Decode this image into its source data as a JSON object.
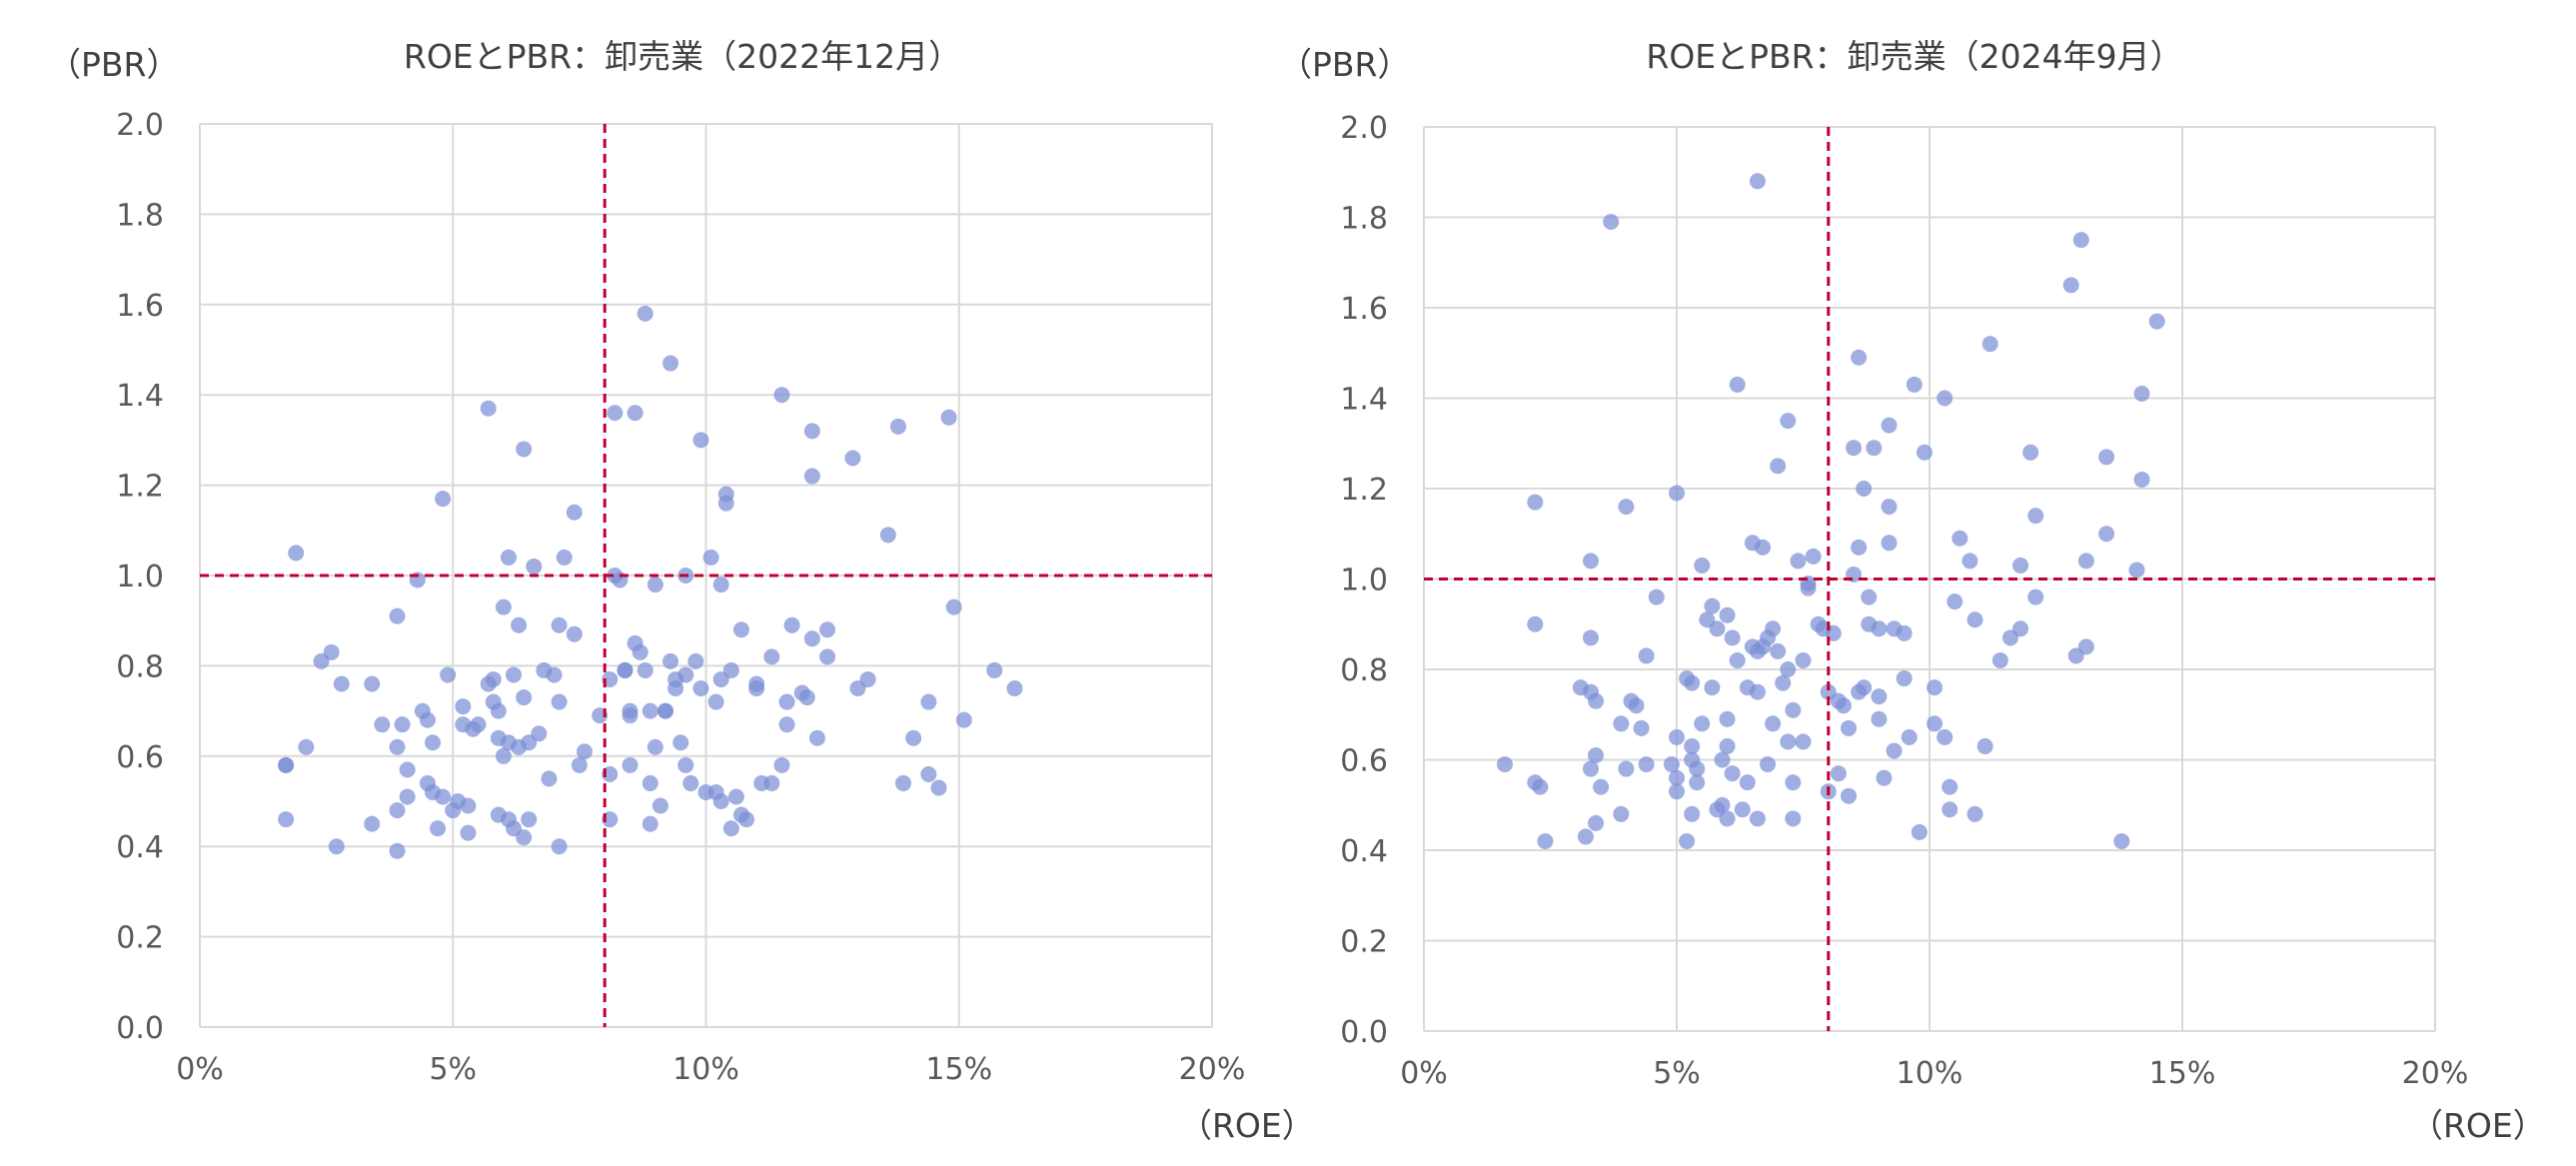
{
  "charts": [
    {
      "title": "ROEとPBR：卸売業（2022年12月）",
      "ylabel": "（PBR）",
      "xlabel": "（ROE）"
    },
    {
      "title": "ROEとPBR：卸売業（2024年9月）",
      "ylabel": "（PBR）",
      "xlabel": "（ROE）"
    }
  ],
  "chart_data": [
    {
      "type": "scatter",
      "title": "ROEとPBR：卸売業（2022年12月）",
      "xlabel": "（ROE）",
      "ylabel": "（PBR）",
      "xlim": [
        0,
        20
      ],
      "ylim": [
        0,
        2.0
      ],
      "x_ticks": [
        "0%",
        "5%",
        "10%",
        "15%",
        "20%"
      ],
      "y_ticks": [
        "0.0",
        "0.2",
        "0.4",
        "0.6",
        "0.8",
        "1.0",
        "1.2",
        "1.4",
        "1.6",
        "1.8",
        "2.0"
      ],
      "grid": true,
      "reference_lines": {
        "x": 8,
        "y": 1.0,
        "color": "#c00030",
        "style": "dashed"
      },
      "marker_color": "#7b8fd6",
      "points": [
        [
          1.9,
          1.05
        ],
        [
          1.7,
          0.58
        ],
        [
          1.7,
          0.46
        ],
        [
          2.1,
          0.62
        ],
        [
          2.4,
          0.81
        ],
        [
          2.6,
          0.83
        ],
        [
          2.8,
          0.76
        ],
        [
          2.7,
          0.4
        ],
        [
          3.4,
          0.76
        ],
        [
          3.4,
          0.45
        ],
        [
          3.6,
          0.67
        ],
        [
          3.9,
          0.91
        ],
        [
          3.9,
          0.62
        ],
        [
          4.0,
          0.67
        ],
        [
          3.9,
          0.48
        ],
        [
          3.9,
          0.39
        ],
        [
          4.1,
          0.57
        ],
        [
          4.1,
          0.51
        ],
        [
          4.3,
          0.99
        ],
        [
          4.4,
          0.7
        ],
        [
          4.5,
          0.68
        ],
        [
          4.5,
          0.54
        ],
        [
          4.6,
          0.52
        ],
        [
          4.6,
          0.63
        ],
        [
          4.7,
          0.44
        ],
        [
          4.8,
          1.17
        ],
        [
          4.8,
          0.51
        ],
        [
          4.9,
          0.78
        ],
        [
          5.0,
          0.48
        ],
        [
          5.1,
          0.5
        ],
        [
          5.2,
          0.71
        ],
        [
          5.2,
          0.67
        ],
        [
          5.3,
          0.49
        ],
        [
          5.3,
          0.43
        ],
        [
          5.4,
          0.66
        ],
        [
          5.5,
          0.67
        ],
        [
          5.7,
          1.37
        ],
        [
          5.7,
          0.76
        ],
        [
          5.8,
          0.77
        ],
        [
          5.8,
          0.72
        ],
        [
          5.9,
          0.7
        ],
        [
          5.9,
          0.64
        ],
        [
          5.9,
          0.47
        ],
        [
          6.0,
          0.93
        ],
        [
          6.0,
          0.6
        ],
        [
          6.1,
          0.63
        ],
        [
          6.1,
          0.46
        ],
        [
          6.1,
          1.04
        ],
        [
          6.2,
          0.78
        ],
        [
          6.2,
          0.44
        ],
        [
          6.3,
          0.89
        ],
        [
          6.3,
          0.62
        ],
        [
          6.4,
          1.28
        ],
        [
          6.4,
          0.73
        ],
        [
          6.4,
          0.42
        ],
        [
          6.5,
          0.63
        ],
        [
          6.5,
          0.46
        ],
        [
          6.6,
          1.02
        ],
        [
          6.7,
          0.65
        ],
        [
          6.8,
          0.79
        ],
        [
          6.9,
          0.55
        ],
        [
          7.0,
          0.78
        ],
        [
          7.1,
          0.89
        ],
        [
          7.1,
          0.72
        ],
        [
          7.1,
          0.4
        ],
        [
          7.2,
          1.04
        ],
        [
          7.4,
          1.14
        ],
        [
          7.4,
          0.87
        ],
        [
          7.5,
          0.58
        ],
        [
          7.6,
          0.61
        ],
        [
          7.9,
          0.69
        ],
        [
          8.1,
          0.77
        ],
        [
          8.1,
          0.56
        ],
        [
          8.1,
          0.46
        ],
        [
          8.2,
          1.36
        ],
        [
          8.2,
          1.0
        ],
        [
          8.3,
          0.99
        ],
        [
          8.4,
          0.79
        ],
        [
          8.5,
          0.7
        ],
        [
          8.5,
          0.69
        ],
        [
          8.5,
          0.58
        ],
        [
          8.6,
          1.36
        ],
        [
          8.6,
          0.85
        ],
        [
          8.7,
          0.83
        ],
        [
          8.8,
          1.58
        ],
        [
          8.8,
          0.79
        ],
        [
          8.9,
          0.7
        ],
        [
          8.9,
          0.54
        ],
        [
          8.9,
          0.45
        ],
        [
          9.0,
          0.98
        ],
        [
          9.0,
          0.62
        ],
        [
          9.1,
          0.49
        ],
        [
          9.2,
          0.7
        ],
        [
          9.3,
          1.47
        ],
        [
          9.3,
          0.81
        ],
        [
          9.4,
          0.77
        ],
        [
          9.4,
          0.75
        ],
        [
          9.5,
          0.63
        ],
        [
          9.6,
          1.0
        ],
        [
          9.6,
          0.78
        ],
        [
          9.6,
          0.58
        ],
        [
          9.7,
          0.54
        ],
        [
          9.8,
          0.81
        ],
        [
          9.9,
          1.3
        ],
        [
          9.9,
          0.75
        ],
        [
          10.0,
          0.52
        ],
        [
          10.1,
          1.04
        ],
        [
          10.2,
          0.72
        ],
        [
          10.2,
          0.52
        ],
        [
          10.3,
          0.98
        ],
        [
          10.3,
          0.77
        ],
        [
          10.3,
          0.5
        ],
        [
          10.4,
          1.18
        ],
        [
          10.4,
          1.16
        ],
        [
          10.5,
          0.79
        ],
        [
          10.5,
          0.44
        ],
        [
          10.6,
          0.51
        ],
        [
          10.7,
          0.88
        ],
        [
          10.7,
          0.47
        ],
        [
          10.8,
          0.46
        ],
        [
          11.0,
          0.76
        ],
        [
          11.0,
          0.75
        ],
        [
          11.1,
          0.54
        ],
        [
          11.3,
          0.82
        ],
        [
          11.3,
          0.54
        ],
        [
          11.5,
          1.4
        ],
        [
          11.5,
          0.58
        ],
        [
          11.6,
          0.72
        ],
        [
          11.6,
          0.67
        ],
        [
          11.7,
          0.89
        ],
        [
          11.9,
          0.74
        ],
        [
          12.0,
          0.73
        ],
        [
          12.1,
          1.32
        ],
        [
          12.1,
          1.22
        ],
        [
          12.1,
          0.86
        ],
        [
          12.2,
          0.64
        ],
        [
          12.4,
          0.88
        ],
        [
          12.4,
          0.82
        ],
        [
          12.9,
          1.26
        ],
        [
          13.0,
          0.75
        ],
        [
          13.2,
          0.77
        ],
        [
          13.6,
          1.09
        ],
        [
          13.8,
          1.33
        ],
        [
          13.9,
          0.54
        ],
        [
          14.1,
          0.64
        ],
        [
          14.4,
          0.72
        ],
        [
          14.4,
          0.56
        ],
        [
          14.6,
          0.53
        ],
        [
          14.8,
          1.35
        ],
        [
          14.9,
          0.93
        ],
        [
          15.1,
          0.68
        ],
        [
          15.7,
          0.79
        ],
        [
          16.1,
          0.75
        ],
        [
          1.7,
          0.58
        ],
        [
          9.2,
          0.7
        ],
        [
          8.4,
          0.79
        ]
      ]
    },
    {
      "type": "scatter",
      "title": "ROEとPBR：卸売業（2024年9月）",
      "xlabel": "（ROE）",
      "ylabel": "（PBR）",
      "xlim": [
        0,
        20
      ],
      "ylim": [
        0,
        2.0
      ],
      "x_ticks": [
        "0%",
        "5%",
        "10%",
        "15%",
        "20%"
      ],
      "y_ticks": [
        "0.0",
        "0.2",
        "0.4",
        "0.6",
        "0.8",
        "1.0",
        "1.2",
        "1.4",
        "1.6",
        "1.8",
        "2.0"
      ],
      "grid": true,
      "reference_lines": {
        "x": 8,
        "y": 1.0,
        "color": "#c00030",
        "style": "dashed"
      },
      "marker_color": "#7b8fd6",
      "points": [
        [
          1.6,
          0.59
        ],
        [
          2.2,
          1.17
        ],
        [
          2.2,
          0.9
        ],
        [
          2.2,
          0.55
        ],
        [
          2.3,
          0.54
        ],
        [
          2.4,
          0.42
        ],
        [
          3.1,
          0.76
        ],
        [
          3.2,
          0.43
        ],
        [
          3.3,
          1.04
        ],
        [
          3.3,
          0.87
        ],
        [
          3.3,
          0.75
        ],
        [
          3.3,
          0.58
        ],
        [
          3.4,
          0.73
        ],
        [
          3.4,
          0.61
        ],
        [
          3.5,
          0.54
        ],
        [
          3.4,
          0.46
        ],
        [
          3.7,
          1.79
        ],
        [
          3.9,
          0.68
        ],
        [
          3.9,
          0.48
        ],
        [
          4.0,
          1.16
        ],
        [
          4.0,
          0.58
        ],
        [
          4.1,
          0.73
        ],
        [
          4.2,
          0.72
        ],
        [
          4.3,
          0.67
        ],
        [
          4.4,
          0.83
        ],
        [
          4.4,
          0.59
        ],
        [
          4.6,
          0.96
        ],
        [
          4.9,
          0.59
        ],
        [
          5.0,
          1.19
        ],
        [
          5.0,
          0.65
        ],
        [
          5.0,
          0.56
        ],
        [
          5.0,
          0.53
        ],
        [
          5.2,
          0.78
        ],
        [
          5.2,
          0.42
        ],
        [
          5.3,
          0.77
        ],
        [
          5.3,
          0.63
        ],
        [
          5.3,
          0.6
        ],
        [
          5.3,
          0.48
        ],
        [
          5.4,
          0.58
        ],
        [
          5.4,
          0.55
        ],
        [
          5.5,
          1.03
        ],
        [
          5.5,
          0.68
        ],
        [
          5.6,
          0.91
        ],
        [
          5.7,
          0.94
        ],
        [
          5.7,
          0.76
        ],
        [
          5.8,
          0.89
        ],
        [
          5.8,
          0.49
        ],
        [
          5.9,
          0.6
        ],
        [
          5.9,
          0.5
        ],
        [
          6.0,
          0.92
        ],
        [
          6.0,
          0.69
        ],
        [
          6.0,
          0.63
        ],
        [
          6.0,
          0.47
        ],
        [
          6.1,
          0.87
        ],
        [
          6.1,
          0.57
        ],
        [
          6.2,
          1.43
        ],
        [
          6.2,
          0.82
        ],
        [
          6.3,
          0.49
        ],
        [
          6.4,
          0.76
        ],
        [
          6.4,
          0.55
        ],
        [
          6.5,
          1.08
        ],
        [
          6.5,
          0.85
        ],
        [
          6.6,
          1.88
        ],
        [
          6.6,
          0.84
        ],
        [
          6.6,
          0.75
        ],
        [
          6.6,
          0.47
        ],
        [
          6.7,
          1.07
        ],
        [
          6.7,
          0.85
        ],
        [
          6.8,
          0.87
        ],
        [
          6.8,
          0.59
        ],
        [
          6.9,
          0.89
        ],
        [
          6.9,
          0.68
        ],
        [
          7.0,
          1.25
        ],
        [
          7.0,
          0.84
        ],
        [
          7.1,
          0.77
        ],
        [
          7.2,
          1.35
        ],
        [
          7.2,
          0.8
        ],
        [
          7.2,
          0.64
        ],
        [
          7.3,
          0.71
        ],
        [
          7.3,
          0.55
        ],
        [
          7.3,
          0.47
        ],
        [
          7.4,
          1.04
        ],
        [
          7.5,
          0.64
        ],
        [
          7.5,
          0.82
        ],
        [
          7.6,
          0.98
        ],
        [
          7.6,
          0.99
        ],
        [
          7.7,
          1.05
        ],
        [
          7.8,
          0.9
        ],
        [
          7.9,
          0.89
        ],
        [
          8.0,
          0.75
        ],
        [
          8.0,
          0.53
        ],
        [
          8.1,
          0.88
        ],
        [
          8.2,
          0.73
        ],
        [
          8.2,
          0.57
        ],
        [
          8.3,
          0.72
        ],
        [
          8.4,
          0.52
        ],
        [
          8.4,
          0.67
        ],
        [
          8.5,
          1.29
        ],
        [
          8.5,
          1.01
        ],
        [
          8.6,
          1.07
        ],
        [
          8.6,
          1.49
        ],
        [
          8.6,
          0.75
        ],
        [
          8.7,
          1.2
        ],
        [
          8.7,
          0.76
        ],
        [
          8.8,
          0.96
        ],
        [
          8.8,
          0.9
        ],
        [
          8.9,
          1.29
        ],
        [
          9.0,
          0.89
        ],
        [
          9.0,
          0.69
        ],
        [
          9.0,
          0.74
        ],
        [
          9.1,
          0.56
        ],
        [
          9.2,
          1.34
        ],
        [
          9.2,
          1.16
        ],
        [
          9.2,
          1.08
        ],
        [
          9.3,
          0.89
        ],
        [
          9.3,
          0.62
        ],
        [
          9.5,
          0.78
        ],
        [
          9.5,
          0.88
        ],
        [
          9.6,
          0.65
        ],
        [
          9.7,
          1.43
        ],
        [
          9.8,
          0.44
        ],
        [
          9.9,
          1.28
        ],
        [
          10.1,
          0.76
        ],
        [
          10.1,
          0.68
        ],
        [
          10.3,
          0.65
        ],
        [
          10.3,
          1.4
        ],
        [
          10.4,
          0.54
        ],
        [
          10.4,
          0.49
        ],
        [
          10.5,
          0.95
        ],
        [
          10.6,
          1.09
        ],
        [
          10.8,
          1.04
        ],
        [
          10.9,
          0.91
        ],
        [
          10.9,
          0.48
        ],
        [
          11.1,
          0.63
        ],
        [
          11.2,
          1.52
        ],
        [
          11.4,
          0.82
        ],
        [
          11.6,
          0.87
        ],
        [
          11.8,
          0.89
        ],
        [
          11.8,
          1.03
        ],
        [
          12.0,
          1.28
        ],
        [
          12.1,
          1.14
        ],
        [
          12.1,
          0.96
        ],
        [
          12.8,
          1.65
        ],
        [
          12.9,
          0.83
        ],
        [
          13.0,
          1.75
        ],
        [
          13.1,
          1.04
        ],
        [
          13.1,
          0.85
        ],
        [
          13.5,
          1.27
        ],
        [
          13.5,
          1.1
        ],
        [
          13.8,
          0.42
        ],
        [
          14.1,
          1.02
        ],
        [
          14.2,
          1.22
        ],
        [
          14.2,
          1.41
        ],
        [
          14.5,
          1.57
        ]
      ]
    }
  ]
}
